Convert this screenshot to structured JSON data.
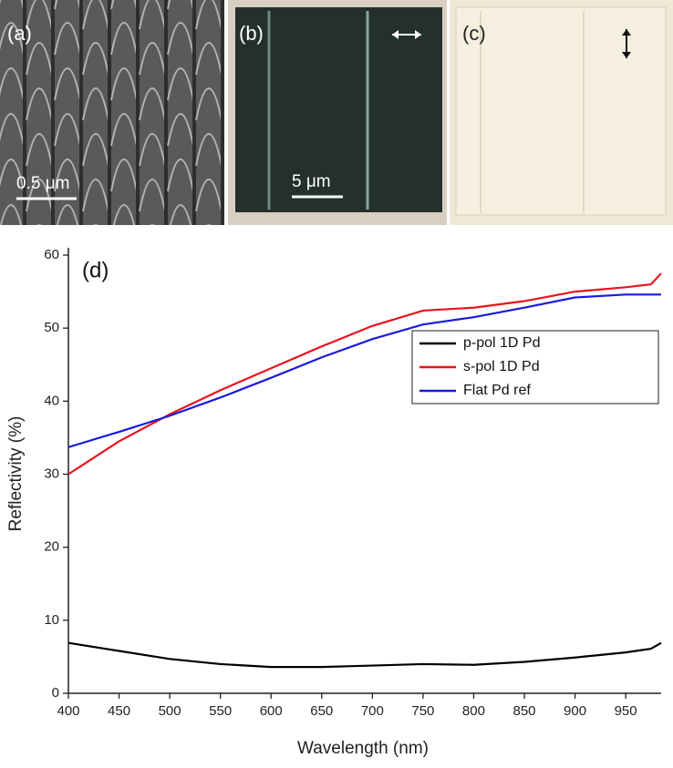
{
  "panels": [
    {
      "label": "(a)",
      "scale_bar": "0.5 μm"
    },
    {
      "label": "(b)",
      "scale_bar": "5 μm"
    },
    {
      "label": "(c)"
    }
  ],
  "chart_data": {
    "type": "line",
    "panel_label": "(d)",
    "x_label": "Wavelength (nm)",
    "y_label": "Reflectivity (%)",
    "x": [
      400,
      450,
      500,
      550,
      600,
      650,
      700,
      750,
      800,
      850,
      900,
      950,
      975,
      985
    ],
    "series": [
      {
        "name": "p-pol 1D Pd",
        "color": "#000000",
        "values": [
          6.9,
          5.8,
          4.7,
          4.0,
          3.6,
          3.6,
          3.8,
          4.0,
          3.9,
          4.3,
          4.9,
          5.6,
          6.1,
          6.9
        ]
      },
      {
        "name": "s-pol 1D Pd",
        "color": "#e8141c",
        "values": [
          30.0,
          34.5,
          38.2,
          41.5,
          44.5,
          47.5,
          50.3,
          52.4,
          52.8,
          53.7,
          55.0,
          55.6,
          56.0,
          57.5
        ]
      },
      {
        "name": "Flat Pd ref",
        "color": "#1a1adc",
        "values": [
          33.7,
          35.8,
          38.0,
          40.5,
          43.2,
          46.0,
          48.5,
          50.5,
          51.5,
          52.8,
          54.2,
          54.6,
          54.6,
          54.6
        ]
      }
    ],
    "xlim": [
      400,
      985
    ],
    "xticks": [
      400,
      450,
      500,
      550,
      600,
      650,
      700,
      750,
      800,
      850,
      900,
      950
    ],
    "ylim": [
      0,
      61
    ],
    "yticks": [
      0,
      10,
      20,
      30,
      40,
      50,
      60
    ],
    "legend": "upper-right",
    "grid": false
  }
}
